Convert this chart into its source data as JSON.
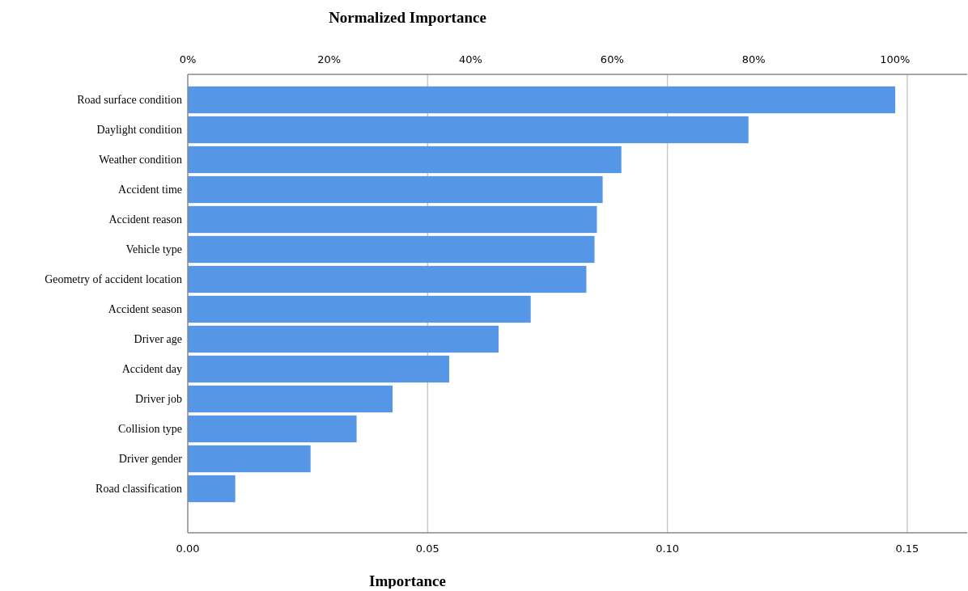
{
  "chart_data": {
    "type": "bar",
    "orientation": "horizontal",
    "xlabel": "Importance",
    "x2label": "Normalized Importance",
    "categories": [
      "Road surface condition",
      "Daylight condition",
      "Weather condition",
      "Accident time",
      "Accident reason",
      "Vehicle type",
      "Geometry of accident location",
      "Accident season",
      "Driver age",
      "Accident day",
      "Driver job",
      "Collision type",
      "Driver gender",
      "Road classification"
    ],
    "values": [
      0.1475,
      0.1169,
      0.0904,
      0.0865,
      0.0853,
      0.0848,
      0.0831,
      0.0715,
      0.0648,
      0.0545,
      0.0427,
      0.0352,
      0.0256,
      0.0099
    ],
    "color": "#5597e6",
    "xlim": [
      0,
      0.1625
    ],
    "xticks": [
      {
        "value": 0,
        "label": "0.00"
      },
      {
        "value": 0.05,
        "label": "0.05"
      },
      {
        "value": 0.1,
        "label": "0.10"
      },
      {
        "value": 0.15,
        "label": "0.15"
      }
    ],
    "x2lim": [
      0,
      110.2
    ],
    "x2ticks": [
      {
        "value": 0,
        "label": "0%"
      },
      {
        "value": 20,
        "label": "20%"
      },
      {
        "value": 40,
        "label": "40%"
      },
      {
        "value": 60,
        "label": "60%"
      },
      {
        "value": 80,
        "label": "80%"
      },
      {
        "value": 100,
        "label": "100%"
      }
    ],
    "grid": "x"
  }
}
